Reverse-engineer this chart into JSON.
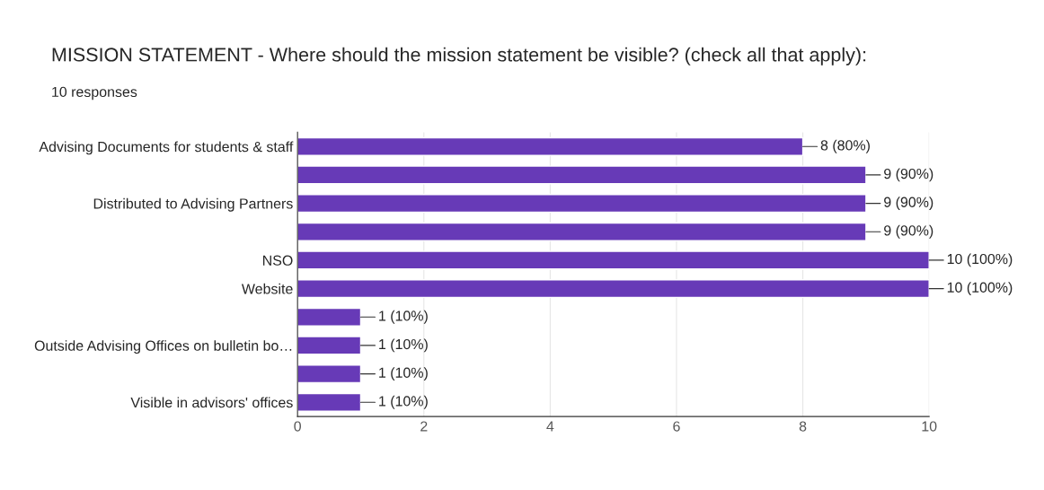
{
  "chart_data": {
    "type": "bar",
    "orientation": "horizontal",
    "title": "MISSION STATEMENT - Where should the mission statement be visible? (check all that apply):",
    "subtitle": "10 responses",
    "categories": [
      "Advising Documents for students & staff",
      null,
      "Distributed to Advising Partners",
      null,
      "NSO",
      "Website",
      null,
      "Outside Advising Offices on bulletin bo…",
      null,
      "Visible in advisors' offices"
    ],
    "values": [
      8,
      9,
      9,
      9,
      10,
      10,
      1,
      1,
      1,
      1
    ],
    "value_labels": [
      "8 (80%)",
      "9 (90%)",
      "9 (90%)",
      "9 (90%)",
      "10 (100%)",
      "10 (100%)",
      "1 (10%)",
      "1 (10%)",
      "1 (10%)",
      "1 (10%)"
    ],
    "color": "#673ab7",
    "xlim": [
      0,
      10
    ],
    "xticks": [
      0,
      2,
      4,
      6,
      8,
      10
    ],
    "grid": "x",
    "legend": false
  }
}
